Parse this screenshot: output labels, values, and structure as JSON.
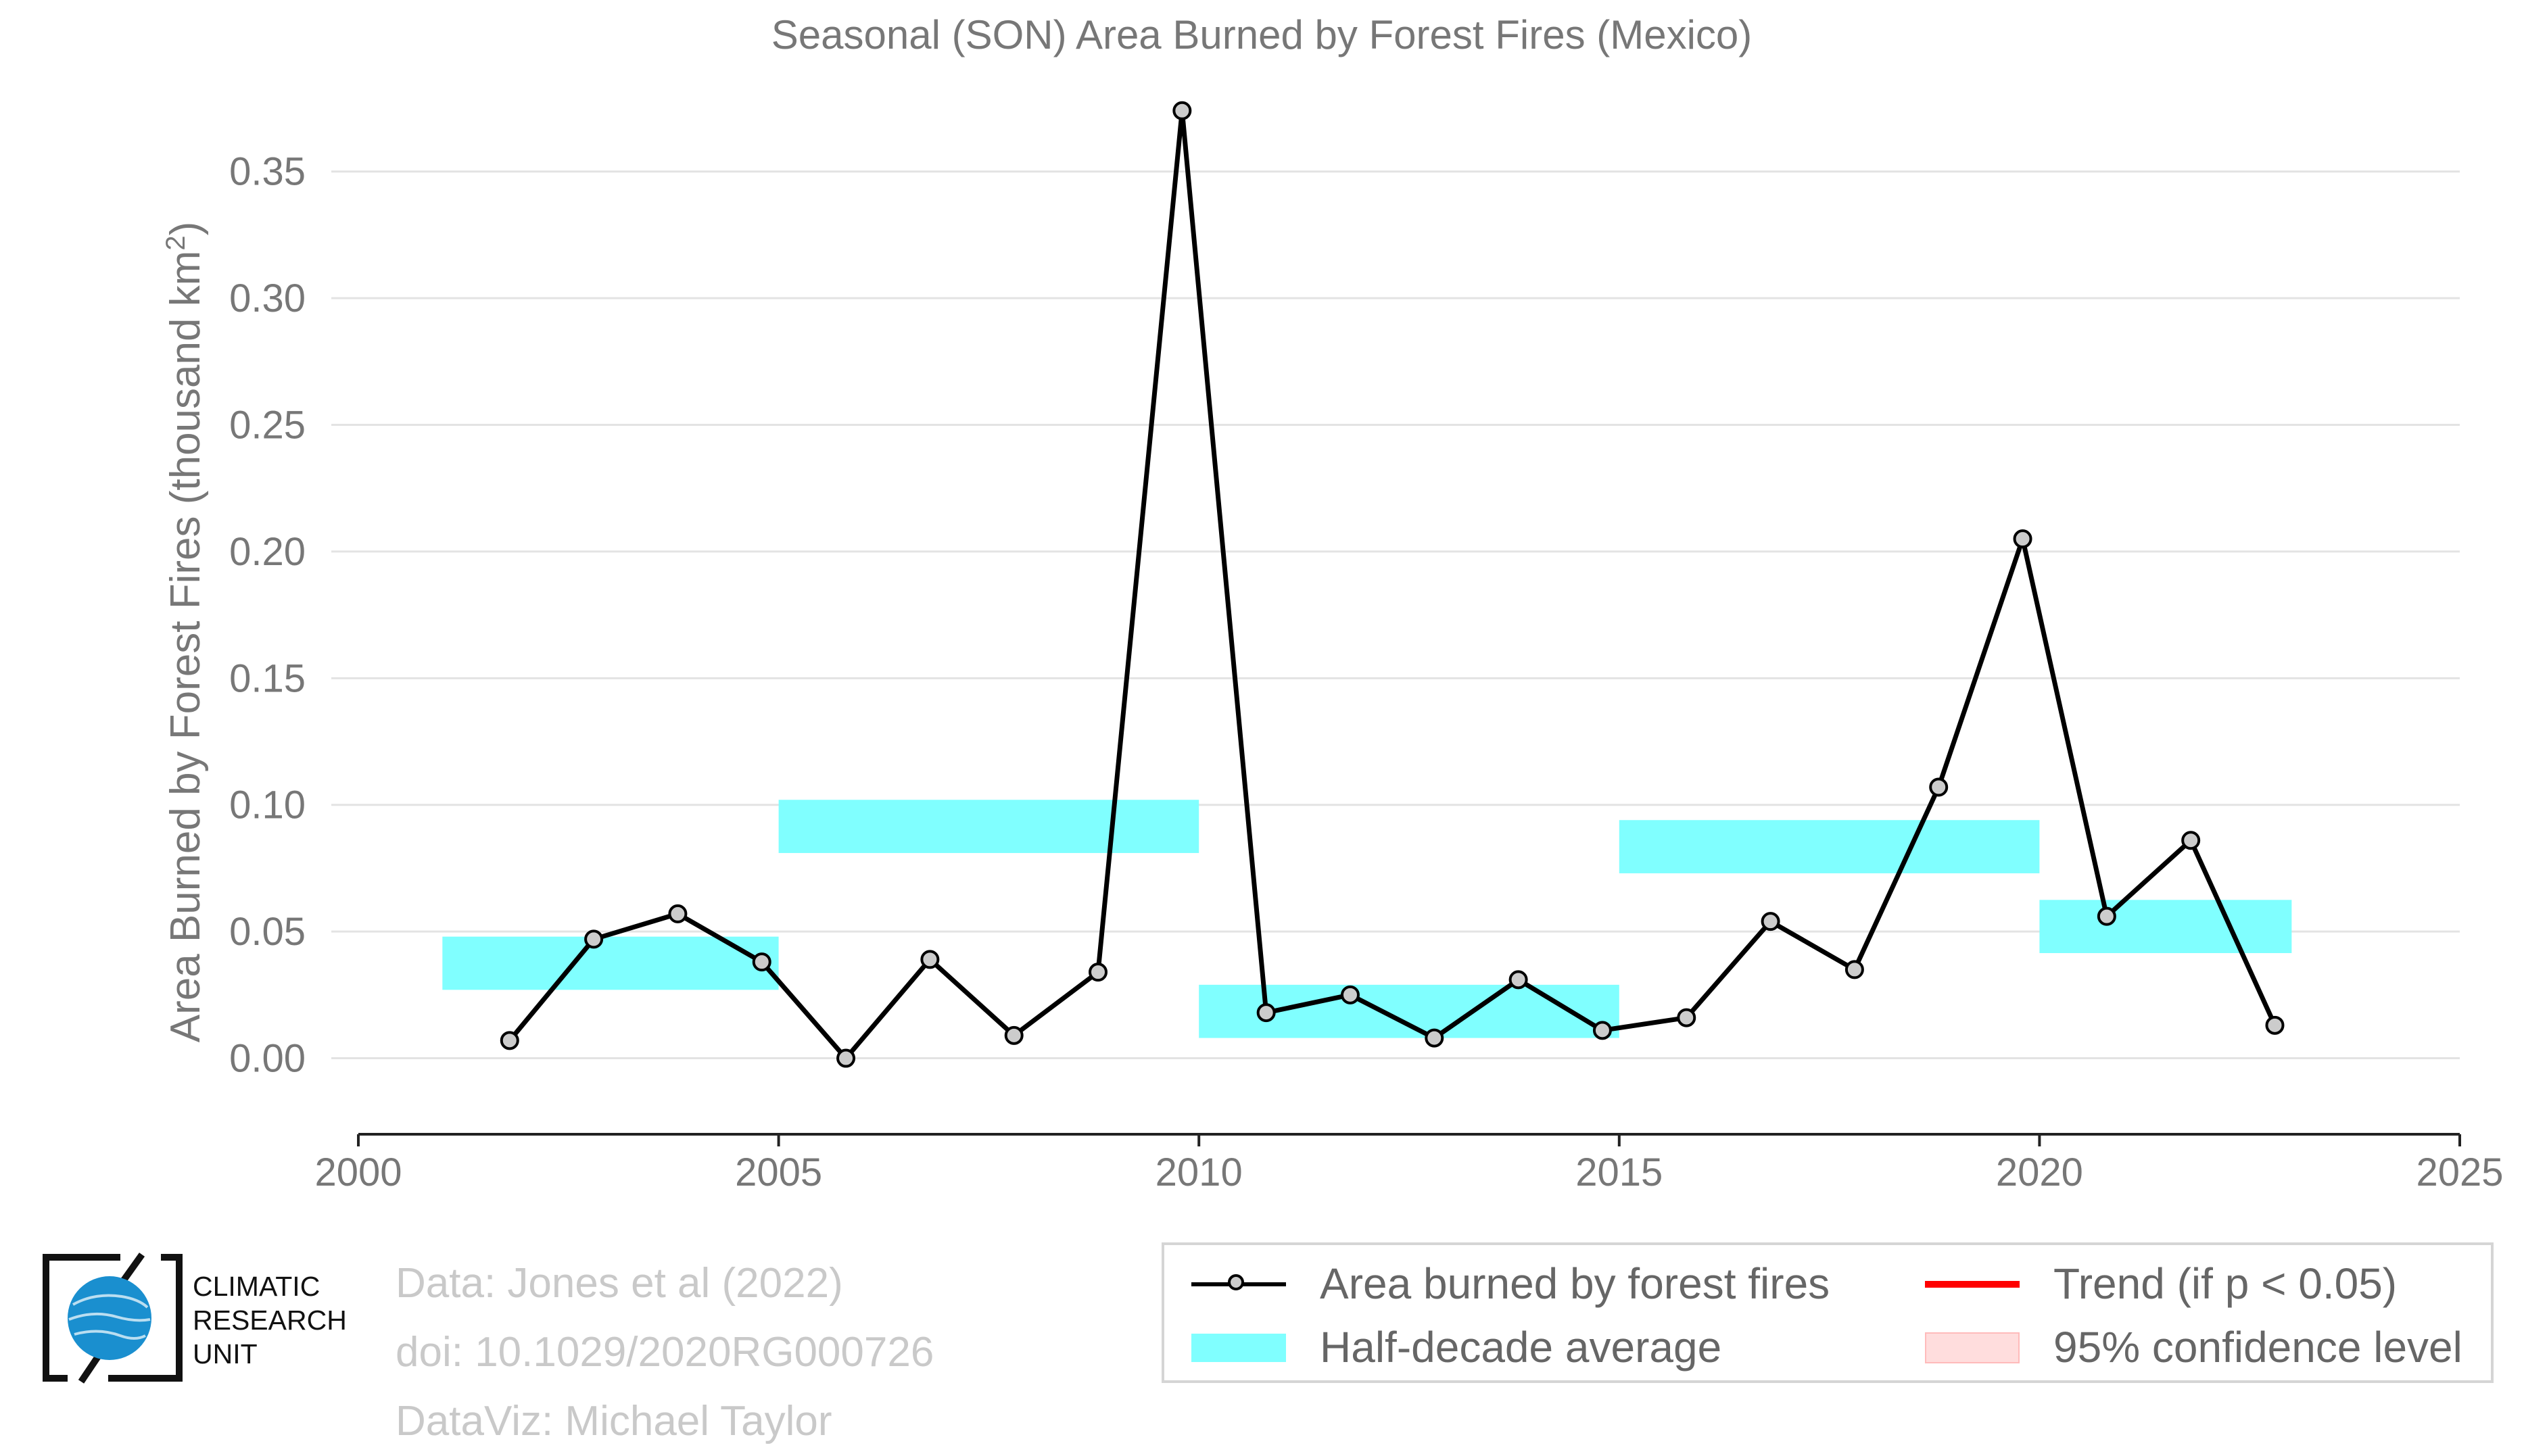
{
  "chart_data": {
    "type": "line",
    "title": "Seasonal (SON) Area Burned by Forest Fires (Mexico)",
    "ylabel_main": "Area Burned by Forest Fires (thousand km",
    "ylabel_sup": "2",
    "ylabel_close": ")",
    "xlim": [
      2000,
      2025
    ],
    "ylim": [
      -0.03,
      0.375
    ],
    "xticks": [
      2000,
      2005,
      2010,
      2015,
      2020,
      2025
    ],
    "xtick_labels": [
      "2000",
      "2005",
      "2010",
      "2015",
      "2020",
      "2025"
    ],
    "yticks": [
      0.0,
      0.05,
      0.1,
      0.15,
      0.2,
      0.25,
      0.3,
      0.35
    ],
    "ytick_labels": [
      "0.00",
      "0.05",
      "0.10",
      "0.15",
      "0.20",
      "0.25",
      "0.30",
      "0.35"
    ],
    "grid": "horizontal",
    "series": [
      {
        "name": "Area burned by forest fires",
        "color": "#000000",
        "marker_color": "#cccccc",
        "x": [
          2001.8,
          2002.8,
          2003.8,
          2004.8,
          2005.8,
          2006.8,
          2007.8,
          2008.8,
          2009.8,
          2010.8,
          2011.8,
          2012.8,
          2013.8,
          2014.8,
          2015.8,
          2016.8,
          2017.8,
          2018.8,
          2019.8,
          2020.8,
          2021.8,
          2022.8
        ],
        "y": [
          0.007,
          0.047,
          0.057,
          0.038,
          0.0,
          0.039,
          0.009,
          0.034,
          0.374,
          0.018,
          0.025,
          0.008,
          0.031,
          0.011,
          0.016,
          0.054,
          0.035,
          0.107,
          0.205,
          0.056,
          0.086,
          0.013
        ]
      }
    ],
    "half_decade_average": {
      "name": "Half-decade average",
      "color": "#80ffff",
      "segments": [
        {
          "x0": 2001.0,
          "x1": 2005.0,
          "y": 0.0375
        },
        {
          "x0": 2005.0,
          "x1": 2010.0,
          "y": 0.0915
        },
        {
          "x0": 2010.0,
          "x1": 2015.0,
          "y": 0.0185
        },
        {
          "x0": 2015.0,
          "x1": 2020.0,
          "y": 0.0835
        },
        {
          "x0": 2020.0,
          "x1": 2023.0,
          "y": 0.052
        }
      ]
    },
    "legend": {
      "position": "bottom-right",
      "entries": [
        {
          "label": "Area burned by forest fires",
          "kind": "line-marker",
          "color": "#000000"
        },
        {
          "label": "Trend (if p < 0.05)",
          "kind": "line",
          "color": "#ff0000"
        },
        {
          "label": "Half-decade average",
          "kind": "band",
          "color": "#80ffff"
        },
        {
          "label": "95% confidence level",
          "kind": "band",
          "color": "#ffdddd"
        }
      ]
    }
  },
  "credits": {
    "line1": "Data: Jones et al (2022)",
    "line2": "doi: 10.1029/2020RG000726",
    "line3": "DataViz: Michael Taylor"
  },
  "logo": {
    "line1": "CLIMATIC",
    "line2": "RESEARCH",
    "line3": "UNIT",
    "color": "#1a8fcf"
  }
}
